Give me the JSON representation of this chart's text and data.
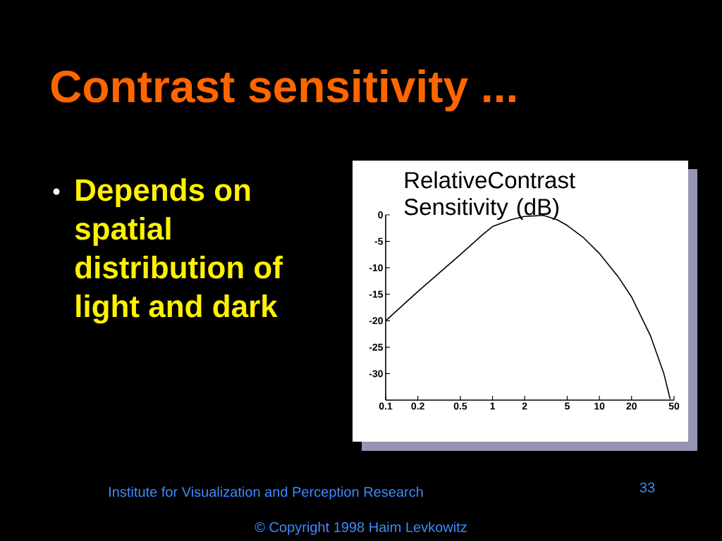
{
  "chart_data": {
    "type": "line",
    "title": "Contrast sensitivity  ...",
    "ylabel": "RelativeContrast Sensitivity (dB)",
    "annotations": [
      "Depends on spatial distribution of light and dark",
      "Institute for Visualization and Perception Research",
      "33",
      "© Copyright 1998 Haim Levkowitz"
    ],
    "series": [
      {
        "color": "#000000",
        "x": [
          0.1,
          0.2,
          0.5,
          0.8,
          1,
          1.5,
          2,
          3,
          4,
          5,
          7,
          10,
          15,
          20,
          30,
          40,
          46
        ],
        "values": [
          -20,
          -14.5,
          -7.5,
          -3.8,
          -2.2,
          -0.9,
          -0.3,
          -0.1,
          -0.9,
          -2,
          -4.2,
          -7.3,
          -11.7,
          -15.5,
          -22.8,
          -29.9,
          -34.8
        ]
      }
    ],
    "log": "x",
    "xlim": [
      0.1,
      50
    ],
    "xticks": [
      {
        "value": 0.1,
        "label": "0.1"
      },
      0.2,
      0.5,
      1,
      2,
      5,
      10,
      20,
      50
    ],
    "ylim": [
      -35,
      0
    ],
    "yticks": [
      -30,
      -25,
      -20,
      -15,
      -10,
      -5,
      0
    ],
    "marker": "none",
    "line_style": "solid"
  }
}
